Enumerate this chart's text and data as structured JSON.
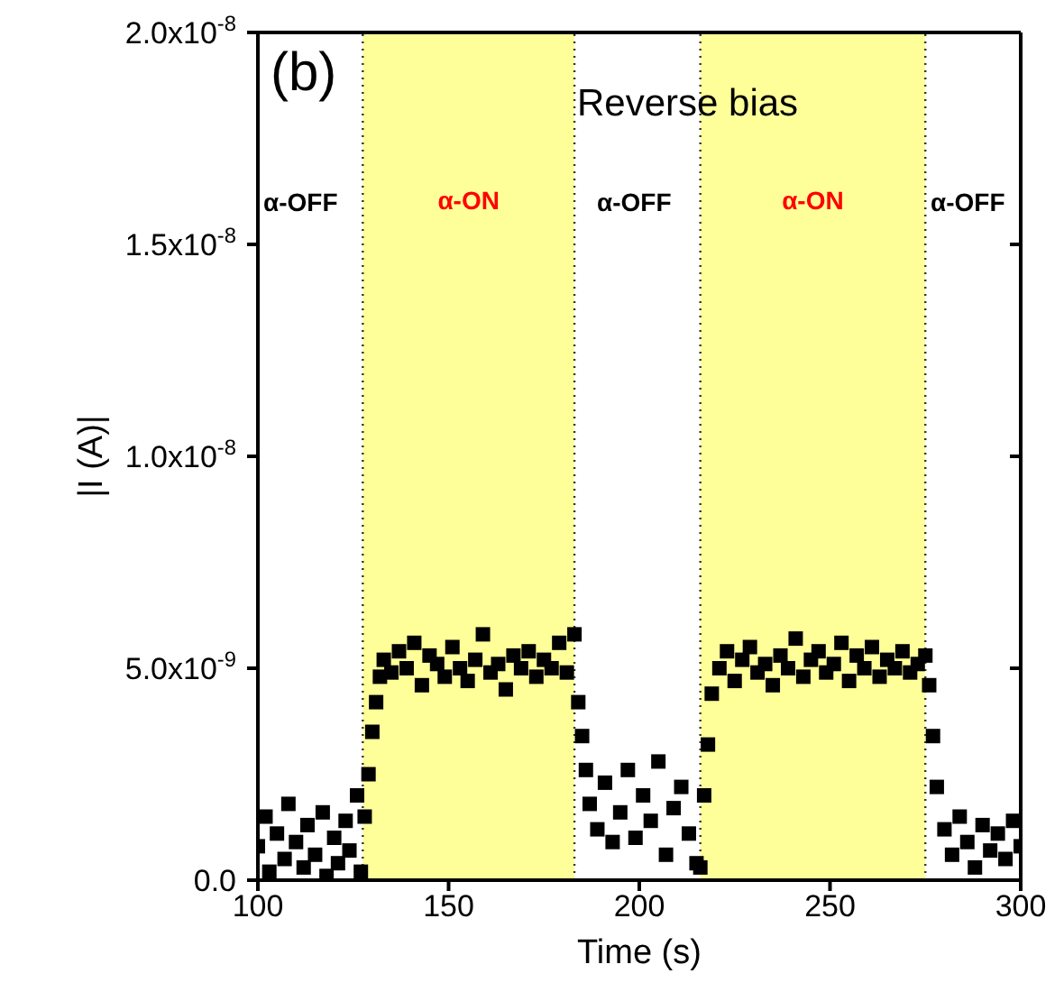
{
  "chart_data": {
    "type": "scatter",
    "xlabel": "Time (s)",
    "ylabel": "|I (A)|",
    "xlim": [
      100,
      300
    ],
    "xticks": [
      100,
      150,
      200,
      250,
      300
    ],
    "ylim": [
      0,
      2e-08
    ],
    "yticks": [
      {
        "value": 0,
        "label": "0.0"
      },
      {
        "value": 5e-09,
        "label": "5.0x10$^{-9}$"
      },
      {
        "value": 1e-08,
        "label": "1.0x10$^{-8}$"
      },
      {
        "value": 1.5e-08,
        "label": "1.5x10$^{-8}$"
      },
      {
        "value": 2e-08,
        "label": "2.0x10$^{-8}$"
      }
    ],
    "marker": "square",
    "bands": [
      {
        "axis": "x",
        "from": 127.5,
        "to": 183,
        "label": "α-ON",
        "color": "#ffff99"
      },
      {
        "axis": "x",
        "from": 216,
        "to": 275,
        "label": "α-ON",
        "color": "#ffff99"
      }
    ],
    "annotations": [
      "(b)",
      "Reverse bias",
      "α-OFF",
      "α-OFF",
      "α-OFF"
    ],
    "series": [
      {
        "color": "#000000",
        "x": [
          100,
          102,
          103,
          105,
          107,
          108,
          110,
          112,
          113,
          115,
          117,
          118,
          120,
          121,
          123,
          124,
          126,
          127,
          128,
          129,
          130,
          131,
          132,
          133,
          135,
          137,
          139,
          141,
          143,
          145,
          147,
          149,
          151,
          153,
          155,
          157,
          159,
          161,
          163,
          165,
          167,
          169,
          171,
          173,
          175,
          177,
          179,
          181,
          183,
          184,
          185,
          186,
          187,
          189,
          191,
          193,
          195,
          197,
          199,
          201,
          203,
          205,
          207,
          209,
          211,
          213,
          215,
          216,
          217,
          218,
          219,
          221,
          223,
          225,
          227,
          229,
          231,
          233,
          235,
          237,
          239,
          241,
          243,
          245,
          247,
          249,
          251,
          253,
          255,
          257,
          259,
          261,
          263,
          265,
          267,
          269,
          271,
          273,
          275,
          276,
          277,
          278,
          280,
          282,
          284,
          286,
          288,
          290,
          292,
          294,
          296,
          298,
          300
        ],
        "values": [
          8e-10,
          1.5e-09,
          2e-10,
          1.1e-09,
          5e-10,
          1.8e-09,
          9e-10,
          3e-10,
          1.3e-09,
          6e-10,
          1.6e-09,
          1e-10,
          1e-09,
          4e-10,
          1.4e-09,
          7e-10,
          2e-09,
          2e-10,
          1.5e-09,
          2.5e-09,
          3.5e-09,
          4.2e-09,
          4.8e-09,
          5.2e-09,
          4.9e-09,
          5.4e-09,
          5e-09,
          5.6e-09,
          4.6e-09,
          5.3e-09,
          5.1e-09,
          4.8e-09,
          5.5e-09,
          5e-09,
          4.7e-09,
          5.2e-09,
          5.8e-09,
          4.9e-09,
          5.1e-09,
          4.5e-09,
          5.3e-09,
          5e-09,
          5.4e-09,
          4.8e-09,
          5.2e-09,
          5e-09,
          5.6e-09,
          4.9e-09,
          5.8e-09,
          4.2e-09,
          3.4e-09,
          2.6e-09,
          1.8e-09,
          1.2e-09,
          2.3e-09,
          9e-10,
          1.6e-09,
          2.6e-09,
          1e-09,
          2e-09,
          1.4e-09,
          2.8e-09,
          6e-10,
          1.7e-09,
          2.2e-09,
          1.1e-09,
          4e-10,
          3e-10,
          2e-09,
          3.2e-09,
          4.4e-09,
          5e-09,
          5.4e-09,
          4.7e-09,
          5.2e-09,
          5.5e-09,
          4.9e-09,
          5.1e-09,
          4.6e-09,
          5.3e-09,
          5e-09,
          5.7e-09,
          4.8e-09,
          5.2e-09,
          5.4e-09,
          4.9e-09,
          5.1e-09,
          5.6e-09,
          4.7e-09,
          5.3e-09,
          5e-09,
          5.5e-09,
          4.8e-09,
          5.2e-09,
          5e-09,
          5.4e-09,
          4.9e-09,
          5.1e-09,
          5.3e-09,
          4.6e-09,
          3.4e-09,
          2.2e-09,
          1.2e-09,
          6e-10,
          1.5e-09,
          9e-10,
          3e-10,
          1.3e-09,
          7e-10,
          1.1e-09,
          5e-10,
          1.4e-09,
          8e-10
        ]
      }
    ]
  }
}
